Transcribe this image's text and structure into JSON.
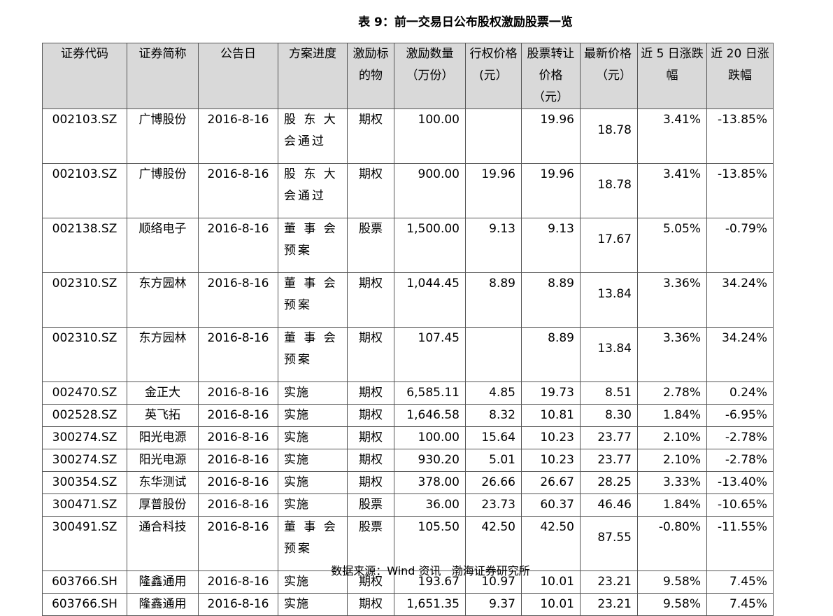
{
  "title": "表 9：前一交易日公布股权激励股票一览",
  "headers": [
    "证券代码",
    "证券简称",
    "公告日",
    "方案进度",
    "激励标的物",
    "激励数量（万份）",
    "行权价格(元）",
    "股票转让价格（元）",
    "最新价格（元）",
    "近 5 日涨跌幅",
    "近 20 日涨跌幅"
  ],
  "rows": [
    [
      "002103.SZ",
      "广博股份",
      "2016-8-16",
      "股 东 大 会通过",
      "期权",
      "100.00",
      "",
      "19.96",
      "18.78",
      "3.41%",
      "-13.85%"
    ],
    [
      "002103.SZ",
      "广博股份",
      "2016-8-16",
      "股 东 大 会通过",
      "期权",
      "900.00",
      "19.96",
      "19.96",
      "18.78",
      "3.41%",
      "-13.85%"
    ],
    [
      "002138.SZ",
      "顺络电子",
      "2016-8-16",
      "董 事 会 预案",
      "股票",
      "1,500.00",
      "9.13",
      "9.13",
      "17.67",
      "5.05%",
      "-0.79%"
    ],
    [
      "002310.SZ",
      "东方园林",
      "2016-8-16",
      "董 事 会 预案",
      "期权",
      "1,044.45",
      "8.89",
      "8.89",
      "13.84",
      "3.36%",
      "34.24%"
    ],
    [
      "002310.SZ",
      "东方园林",
      "2016-8-16",
      "董 事 会 预案",
      "期权",
      "107.45",
      "",
      "8.89",
      "13.84",
      "3.36%",
      "34.24%"
    ],
    [
      "002470.SZ",
      "金正大",
      "2016-8-16",
      "实施",
      "期权",
      "6,585.11",
      "4.85",
      "19.73",
      "8.51",
      "2.78%",
      "0.24%"
    ],
    [
      "002528.SZ",
      "英飞拓",
      "2016-8-16",
      "实施",
      "期权",
      "1,646.58",
      "8.32",
      "10.81",
      "8.30",
      "1.84%",
      "-6.95%"
    ],
    [
      "300274.SZ",
      "阳光电源",
      "2016-8-16",
      "实施",
      "期权",
      "100.00",
      "15.64",
      "10.23",
      "23.77",
      "2.10%",
      "-2.78%"
    ],
    [
      "300274.SZ",
      "阳光电源",
      "2016-8-16",
      "实施",
      "期权",
      "930.20",
      "5.01",
      "10.23",
      "23.77",
      "2.10%",
      "-2.78%"
    ],
    [
      "300354.SZ",
      "东华测试",
      "2016-8-16",
      "实施",
      "期权",
      "378.00",
      "26.66",
      "26.67",
      "28.25",
      "3.33%",
      "-13.40%"
    ],
    [
      "300471.SZ",
      "厚普股份",
      "2016-8-16",
      "实施",
      "股票",
      "36.00",
      "23.73",
      "60.37",
      "46.46",
      "1.84%",
      "-10.65%"
    ],
    [
      "300491.SZ",
      "通合科技",
      "2016-8-16",
      "董 事 会 预案",
      "股票",
      "105.50",
      "42.50",
      "42.50",
      "87.55",
      "-0.80%",
      "-11.55%"
    ],
    [
      "603766.SH",
      "隆鑫通用",
      "2016-8-16",
      "实施",
      "期权",
      "193.67",
      "10.97",
      "10.01",
      "23.21",
      "9.58%",
      "7.45%"
    ],
    [
      "603766.SH",
      "隆鑫通用",
      "2016-8-16",
      "实施",
      "期权",
      "1,651.35",
      "9.37",
      "10.01",
      "23.21",
      "9.58%",
      "7.45%"
    ]
  ],
  "source": "数据来源：Wind 资讯   渤海证券研究所",
  "colors": {
    "header_bg": "#d9d9d9",
    "border": "#555555"
  }
}
